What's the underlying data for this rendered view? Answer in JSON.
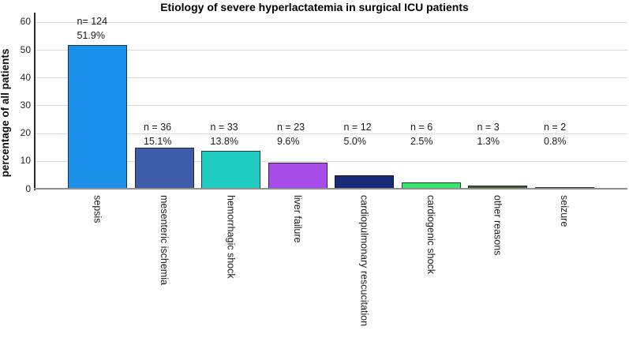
{
  "chart_data": {
    "type": "bar",
    "title": "Etiology of severe hyperlactatemia in surgical ICU patients",
    "ylabel": "percentage of all patients",
    "xlabel": "",
    "ylim": [
      0,
      60
    ],
    "yticks": [
      0,
      10,
      20,
      30,
      40,
      50,
      60
    ],
    "grid": "horizontal",
    "legend_position": "none",
    "categories": [
      "sepsis",
      "mesenteric ischemia",
      "hemorrhagic shock",
      "liver failure",
      "cardiopulmonary rescucitation",
      "cardiogenic shock",
      "other reasons",
      "seizure"
    ],
    "values": [
      51.9,
      15.1,
      13.8,
      9.6,
      5.0,
      2.5,
      1.3,
      0.8
    ],
    "counts": [
      124,
      36,
      33,
      23,
      12,
      6,
      3,
      2
    ],
    "bar_labels": [
      {
        "n": "n= 124",
        "pct": "51.9%"
      },
      {
        "n": "n = 36",
        "pct": "15.1%"
      },
      {
        "n": "n = 33",
        "pct": "13.8%"
      },
      {
        "n": "n = 23",
        "pct": "9.6%"
      },
      {
        "n": "n = 12",
        "pct": "5.0%"
      },
      {
        "n": "n = 6",
        "pct": "2.5%"
      },
      {
        "n": "n = 3",
        "pct": "1.3%"
      },
      {
        "n": "n = 2",
        "pct": "0.8%"
      }
    ],
    "bar_colors": [
      "#1B90E8",
      "#3F5CA9",
      "#21CCC3",
      "#A64DE9",
      "#172A75",
      "#3AE36E",
      "#4C6133",
      "#808080"
    ],
    "axis_color": "#2b2b2b",
    "baseline_color": "#909090",
    "gridline_color": "#d9d9d9"
  }
}
